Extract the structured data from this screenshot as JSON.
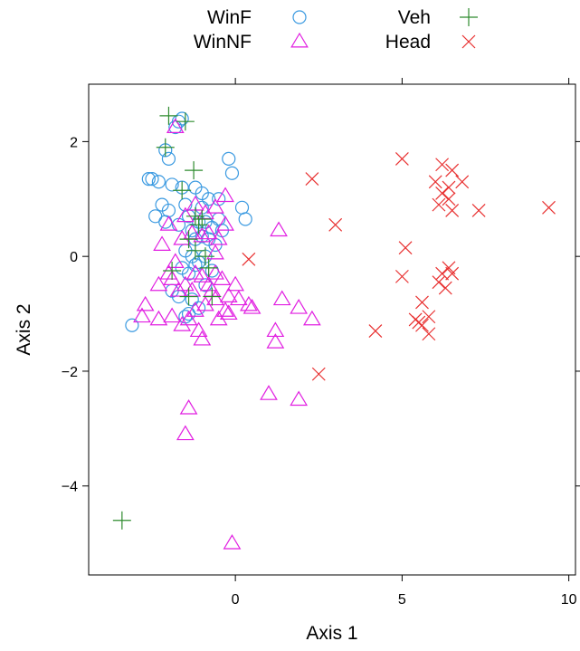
{
  "chart_data": {
    "type": "scatter",
    "title": "",
    "xlabel": "Axis 1",
    "ylabel": "Axis 2",
    "xlim": [
      -4.4,
      10.2
    ],
    "ylim": [
      -5.55,
      3.0
    ],
    "xticks": [
      0,
      5,
      10
    ],
    "yticks": [
      -4,
      -2,
      0,
      2
    ],
    "ytick_labels": [
      "−4",
      "−2",
      "0",
      "2"
    ],
    "grid": false,
    "legend_position": "top",
    "series": [
      {
        "name": "WinF",
        "marker": "circle",
        "color": "#3b9ae1",
        "points": [
          [
            -1.7,
            2.35
          ],
          [
            -1.6,
            2.4
          ],
          [
            -1.8,
            2.25
          ],
          [
            -2.1,
            1.85
          ],
          [
            -2.0,
            1.7
          ],
          [
            -2.6,
            1.35
          ],
          [
            -2.3,
            1.3
          ],
          [
            -2.5,
            1.35
          ],
          [
            -1.9,
            1.25
          ],
          [
            -1.6,
            1.2
          ],
          [
            -1.2,
            1.2
          ],
          [
            -1.0,
            1.1
          ],
          [
            -0.8,
            1.0
          ],
          [
            -0.5,
            1.0
          ],
          [
            -0.2,
            1.7
          ],
          [
            -0.1,
            1.45
          ],
          [
            0.2,
            0.85
          ],
          [
            0.3,
            0.65
          ],
          [
            -2.2,
            0.9
          ],
          [
            -2.0,
            0.8
          ],
          [
            -2.4,
            0.7
          ],
          [
            -2.1,
            0.6
          ],
          [
            -1.7,
            0.55
          ],
          [
            -1.5,
            0.9
          ],
          [
            -1.4,
            0.7
          ],
          [
            -1.3,
            0.45
          ],
          [
            -1.2,
            0.3
          ],
          [
            -1.1,
            0.6
          ],
          [
            -1.0,
            0.85
          ],
          [
            -0.9,
            0.6
          ],
          [
            -0.8,
            0.3
          ],
          [
            -0.7,
            0.5
          ],
          [
            -0.6,
            0.2
          ],
          [
            -1.5,
            0.1
          ],
          [
            -1.3,
            0.0
          ],
          [
            -1.1,
            -0.1
          ],
          [
            -0.9,
            0.0
          ],
          [
            -1.6,
            -0.2
          ],
          [
            -1.4,
            -0.3
          ],
          [
            -1.2,
            -0.15
          ],
          [
            -1.9,
            -0.6
          ],
          [
            -1.7,
            -0.7
          ],
          [
            -1.3,
            -0.75
          ],
          [
            -1.1,
            -0.9
          ],
          [
            -1.4,
            -1.0
          ],
          [
            -1.5,
            -1.05
          ],
          [
            -0.9,
            -0.5
          ],
          [
            -0.7,
            -0.25
          ],
          [
            -3.1,
            -1.2
          ],
          [
            -1.0,
            0.35
          ],
          [
            -0.5,
            0.65
          ],
          [
            -0.4,
            0.45
          ]
        ]
      },
      {
        "name": "WinNF",
        "marker": "triangle",
        "color": "#e11ee1",
        "points": [
          [
            -1.8,
            2.25
          ],
          [
            -0.3,
            1.05
          ],
          [
            -0.6,
            0.85
          ],
          [
            -0.9,
            0.75
          ],
          [
            -1.2,
            0.9
          ],
          [
            -1.5,
            0.7
          ],
          [
            -2.0,
            0.55
          ],
          [
            -2.2,
            0.2
          ],
          [
            -1.6,
            0.3
          ],
          [
            -1.3,
            0.4
          ],
          [
            -1.0,
            0.35
          ],
          [
            -0.8,
            0.4
          ],
          [
            -0.5,
            0.3
          ],
          [
            -0.3,
            0.55
          ],
          [
            -0.6,
            0.05
          ],
          [
            -1.8,
            -0.1
          ],
          [
            -2.0,
            -0.3
          ],
          [
            -2.3,
            -0.5
          ],
          [
            -1.9,
            -0.4
          ],
          [
            -1.7,
            -0.6
          ],
          [
            -1.5,
            -0.5
          ],
          [
            -1.2,
            -0.3
          ],
          [
            -1.0,
            -0.35
          ],
          [
            -0.8,
            -0.5
          ],
          [
            -0.6,
            -0.3
          ],
          [
            -0.4,
            -0.4
          ],
          [
            -0.2,
            -0.7
          ],
          [
            0.0,
            -0.5
          ],
          [
            0.1,
            -0.75
          ],
          [
            -0.3,
            -0.95
          ],
          [
            -0.6,
            -0.75
          ],
          [
            -0.9,
            -0.85
          ],
          [
            -1.2,
            -0.95
          ],
          [
            -1.4,
            -1.1
          ],
          [
            -1.6,
            -1.2
          ],
          [
            -1.1,
            -1.3
          ],
          [
            -1.0,
            -1.45
          ],
          [
            -1.9,
            -1.05
          ],
          [
            -2.3,
            -1.1
          ],
          [
            -2.7,
            -0.85
          ],
          [
            -2.8,
            -1.05
          ],
          [
            -0.5,
            -1.1
          ],
          [
            -0.2,
            -1.0
          ],
          [
            0.4,
            -0.85
          ],
          [
            0.5,
            -0.9
          ],
          [
            1.3,
            0.45
          ],
          [
            1.4,
            -0.75
          ],
          [
            1.2,
            -1.3
          ],
          [
            1.2,
            -1.5
          ],
          [
            1.9,
            -0.9
          ],
          [
            2.3,
            -1.1
          ],
          [
            1.0,
            -2.4
          ],
          [
            1.9,
            -2.5
          ],
          [
            -1.4,
            -2.65
          ],
          [
            -1.5,
            -3.1
          ],
          [
            -0.1,
            -5.0
          ],
          [
            -0.7,
            -0.6
          ],
          [
            -1.3,
            -0.6
          ]
        ]
      },
      {
        "name": "Veh",
        "marker": "plus",
        "color": "#2e8b2e",
        "points": [
          [
            -2.0,
            2.45
          ],
          [
            -1.5,
            2.35
          ],
          [
            -2.1,
            1.9
          ],
          [
            -1.25,
            1.5
          ],
          [
            -1.6,
            1.15
          ],
          [
            -1.2,
            0.7
          ],
          [
            -1.1,
            0.55
          ],
          [
            -1.0,
            0.65
          ],
          [
            -1.4,
            0.3
          ],
          [
            -1.2,
            0.1
          ],
          [
            -0.9,
            0.0
          ],
          [
            -0.8,
            -0.2
          ],
          [
            -1.9,
            -0.25
          ],
          [
            -1.4,
            -0.7
          ],
          [
            -0.7,
            -0.7
          ],
          [
            -3.4,
            -4.6
          ]
        ]
      },
      {
        "name": "Head",
        "marker": "x",
        "color": "#e83030",
        "points": [
          [
            5.0,
            1.7
          ],
          [
            6.2,
            1.6
          ],
          [
            6.5,
            1.5
          ],
          [
            6.0,
            1.3
          ],
          [
            6.4,
            1.2
          ],
          [
            6.8,
            1.3
          ],
          [
            6.2,
            1.1
          ],
          [
            6.4,
            1.0
          ],
          [
            6.1,
            0.9
          ],
          [
            6.5,
            0.8
          ],
          [
            7.3,
            0.8
          ],
          [
            9.4,
            0.85
          ],
          [
            2.3,
            1.35
          ],
          [
            3.0,
            0.55
          ],
          [
            5.1,
            0.15
          ],
          [
            0.4,
            -0.05
          ],
          [
            5.0,
            -0.35
          ],
          [
            6.2,
            -0.3
          ],
          [
            6.4,
            -0.2
          ],
          [
            6.5,
            -0.3
          ],
          [
            6.1,
            -0.45
          ],
          [
            6.3,
            -0.55
          ],
          [
            5.6,
            -0.8
          ],
          [
            5.8,
            -1.05
          ],
          [
            5.4,
            -1.1
          ],
          [
            5.6,
            -1.2
          ],
          [
            5.5,
            -1.15
          ],
          [
            5.8,
            -1.35
          ],
          [
            4.2,
            -1.3
          ],
          [
            2.5,
            -2.05
          ]
        ]
      }
    ]
  }
}
